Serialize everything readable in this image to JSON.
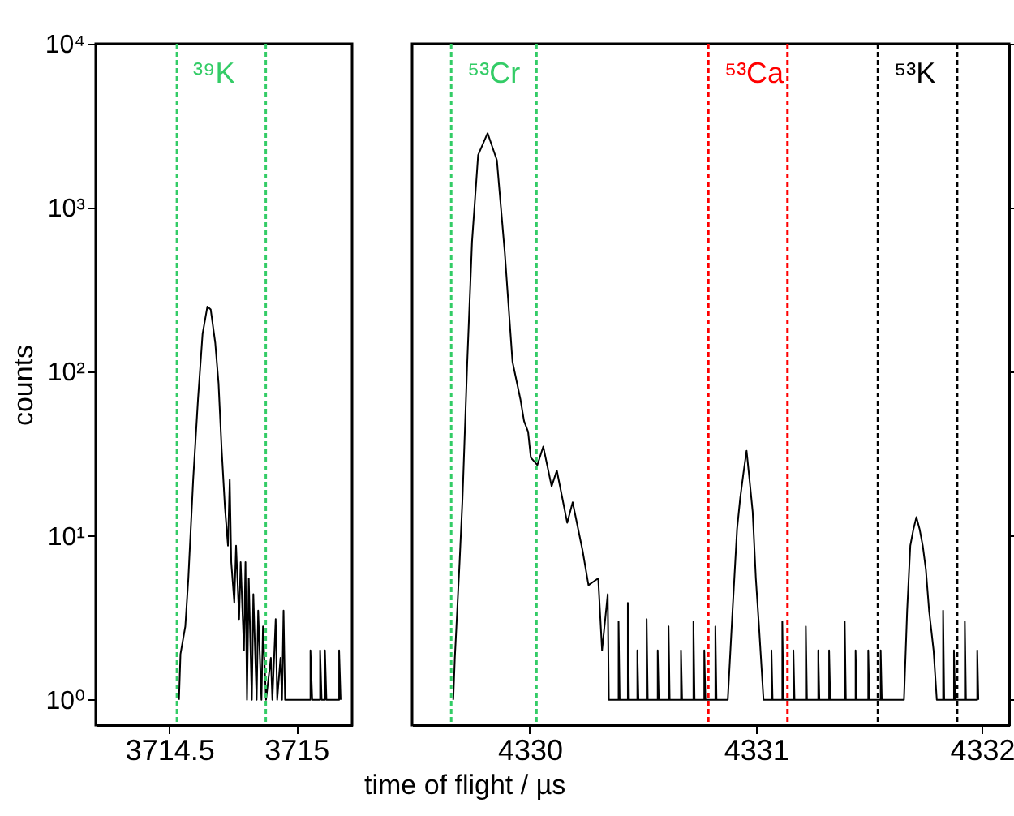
{
  "chart_data": [
    {
      "type": "line",
      "ylabel": "counts",
      "log": "y",
      "grid": false,
      "line_style": "solid",
      "marker": "none",
      "xlim": [
        3714.21,
        3715.22
      ],
      "xticks": [
        3714.5,
        3715
      ],
      "ylim": [
        0.7,
        10000
      ],
      "yticks": [
        {
          "value": 1,
          "label": "10⁰"
        },
        {
          "value": 10,
          "label": "10¹"
        },
        {
          "value": 100,
          "label": "10²"
        },
        {
          "value": 1000,
          "label": "10³"
        },
        {
          "value": 10000,
          "label": "10⁴"
        }
      ],
      "series": [
        {
          "color": "#000000",
          "x": [
            3714.538,
            3714.544,
            3714.563,
            3714.575,
            3714.594,
            3714.613,
            3714.631,
            3714.65,
            3714.663,
            3714.681,
            3714.694,
            3714.706,
            3714.719,
            3714.731,
            3714.738,
            3714.744,
            3714.756,
            3714.763,
            3714.775,
            3714.781,
            3714.794,
            3714.8,
            3714.806,
            3714.813,
            3714.825,
            3714.831,
            3714.844,
            3714.85,
            3714.863,
            3714.869,
            3714.881,
            3714.9,
            3714.906,
            3714.919,
            3714.925,
            3714.938,
            3714.944,
            3714.95,
            3714.956,
            3715.056,
            3715.056,
            3715.063,
            3715.094,
            3715.094,
            3715.1,
            3715.113,
            3715.113,
            3715.119,
            3715.169,
            3715.169,
            3715.175
          ],
          "values": [
            1,
            1.9,
            2.8,
            5.5,
            22,
            68,
            170,
            250,
            240,
            150,
            85,
            34,
            15,
            8.7,
            22,
            6.9,
            3.9,
            8.7,
            3.1,
            6.9,
            2,
            6.9,
            1,
            5.5,
            1,
            4.4,
            1,
            3.5,
            1,
            2.8,
            1,
            1.8,
            1,
            3.1,
            1,
            1.8,
            1,
            3.5,
            1,
            1,
            2,
            1,
            1,
            2,
            1,
            1,
            2,
            1,
            1,
            2,
            1
          ]
        }
      ],
      "ref_lines": [
        {
          "axis": "x",
          "value": 3714.53,
          "label": "³⁹K",
          "color": "#33cc66",
          "line_style": "dashed"
        },
        {
          "axis": "x",
          "value": 3714.88,
          "label": null,
          "color": "#33cc66",
          "line_style": "dashed"
        }
      ]
    },
    {
      "type": "line",
      "xlabel": "time of flight / µs",
      "log": "y",
      "grid": false,
      "line_style": "solid",
      "marker": "none",
      "tick_labels": "x",
      "xlim": [
        4329.48,
        4332.12
      ],
      "xticks": [
        4330,
        4331,
        4332
      ],
      "ylim": [
        0.7,
        10000
      ],
      "yticks": [
        {
          "value": 1,
          "label": null
        },
        {
          "value": 10,
          "label": null
        },
        {
          "value": 100,
          "label": null
        },
        {
          "value": 1000,
          "label": null
        },
        {
          "value": 10000,
          "label": null
        }
      ],
      "series": [
        {
          "color": "#000000",
          "x": [
            4329.662,
            4329.669,
            4329.676,
            4329.69,
            4329.703,
            4329.724,
            4329.745,
            4329.772,
            4329.814,
            4329.855,
            4329.89,
            4329.924,
            4329.959,
            4329.975,
            4329.993,
            4330.005,
            4330.034,
            4330.06,
            4330.097,
            4330.12,
            4330.166,
            4330.19,
            4330.234,
            4330.26,
            4330.303,
            4330.32,
            4330.345,
            4330.35,
            4330.393,
            4330.393,
            4330.398,
            4330.434,
            4330.434,
            4330.439,
            4330.476,
            4330.476,
            4330.481,
            4330.517,
            4330.517,
            4330.522,
            4330.566,
            4330.566,
            4330.571,
            4330.614,
            4330.614,
            4330.619,
            4330.669,
            4330.669,
            4330.674,
            4330.724,
            4330.724,
            4330.729,
            4330.772,
            4330.772,
            4330.777,
            4330.821,
            4330.821,
            4330.826,
            4330.876,
            4330.897,
            4330.917,
            4330.931,
            4330.945,
            4330.959,
            4330.972,
            4330.986,
            4331,
            4331.014,
            4331.034,
            4331.069,
            4331.069,
            4331.074,
            4331.117,
            4331.117,
            4331.122,
            4331.166,
            4331.166,
            4331.171,
            4331.221,
            4331.221,
            4331.226,
            4331.276,
            4331.276,
            4331.281,
            4331.324,
            4331.324,
            4331.329,
            4331.393,
            4331.393,
            4331.398,
            4331.441,
            4331.441,
            4331.446,
            4331.497,
            4331.497,
            4331.502,
            4331.552,
            4331.552,
            4331.557,
            4331.655,
            4331.669,
            4331.683,
            4331.697,
            4331.71,
            4331.724,
            4331.738,
            4331.752,
            4331.766,
            4331.786,
            4331.8,
            4331.828,
            4331.828,
            4331.833,
            4331.876,
            4331.876,
            4331.881,
            4331.924,
            4331.924,
            4331.929,
            4331.979,
            4331.979,
            4331.984
          ],
          "values": [
            1,
            1.8,
            2.8,
            6.9,
            17,
            115,
            620,
            2100,
            2850,
            1950,
            530,
            115,
            68,
            50,
            43,
            30,
            27,
            35,
            20,
            25,
            12,
            16,
            8.1,
            5,
            5.5,
            2,
            4.4,
            1,
            1,
            3,
            1,
            1,
            3.9,
            1,
            1,
            2,
            1,
            1,
            3.1,
            1,
            1,
            2,
            1,
            1,
            2.8,
            1,
            1,
            2,
            1,
            1,
            3,
            1,
            1,
            2,
            1,
            1,
            2.8,
            1,
            1,
            3.5,
            11,
            17,
            24,
            33,
            22,
            14,
            5.5,
            2.8,
            1,
            1,
            2,
            1,
            1,
            3,
            1,
            1,
            2,
            1,
            1,
            2.8,
            1,
            1,
            2,
            1,
            1,
            2,
            1,
            1,
            3,
            1,
            1,
            2,
            1,
            1,
            2,
            1,
            1,
            2,
            1,
            1,
            3.5,
            8.7,
            11,
            13,
            11,
            8.7,
            6.2,
            3.5,
            2,
            1,
            1,
            3.5,
            1,
            1,
            2,
            1,
            1,
            3,
            1,
            1,
            2,
            1
          ]
        }
      ],
      "ref_lines": [
        {
          "axis": "x",
          "value": 4329.653,
          "label": "⁵³Cr",
          "color": "#33cc66",
          "line_style": "dashed"
        },
        {
          "axis": "x",
          "value": 4330.03,
          "label": null,
          "color": "#33cc66",
          "line_style": "dashed"
        },
        {
          "axis": "x",
          "value": 4330.79,
          "label": "⁵³Ca",
          "color": "#ff0000",
          "line_style": "dashed"
        },
        {
          "axis": "x",
          "value": 4331.14,
          "label": null,
          "color": "#ff0000",
          "line_style": "dashed"
        },
        {
          "axis": "x",
          "value": 4331.54,
          "label": "⁵³K",
          "color": "#000000",
          "line_style": "dashed"
        },
        {
          "axis": "x",
          "value": 4331.89,
          "label": null,
          "color": "#000000",
          "line_style": "dashed"
        }
      ]
    }
  ]
}
